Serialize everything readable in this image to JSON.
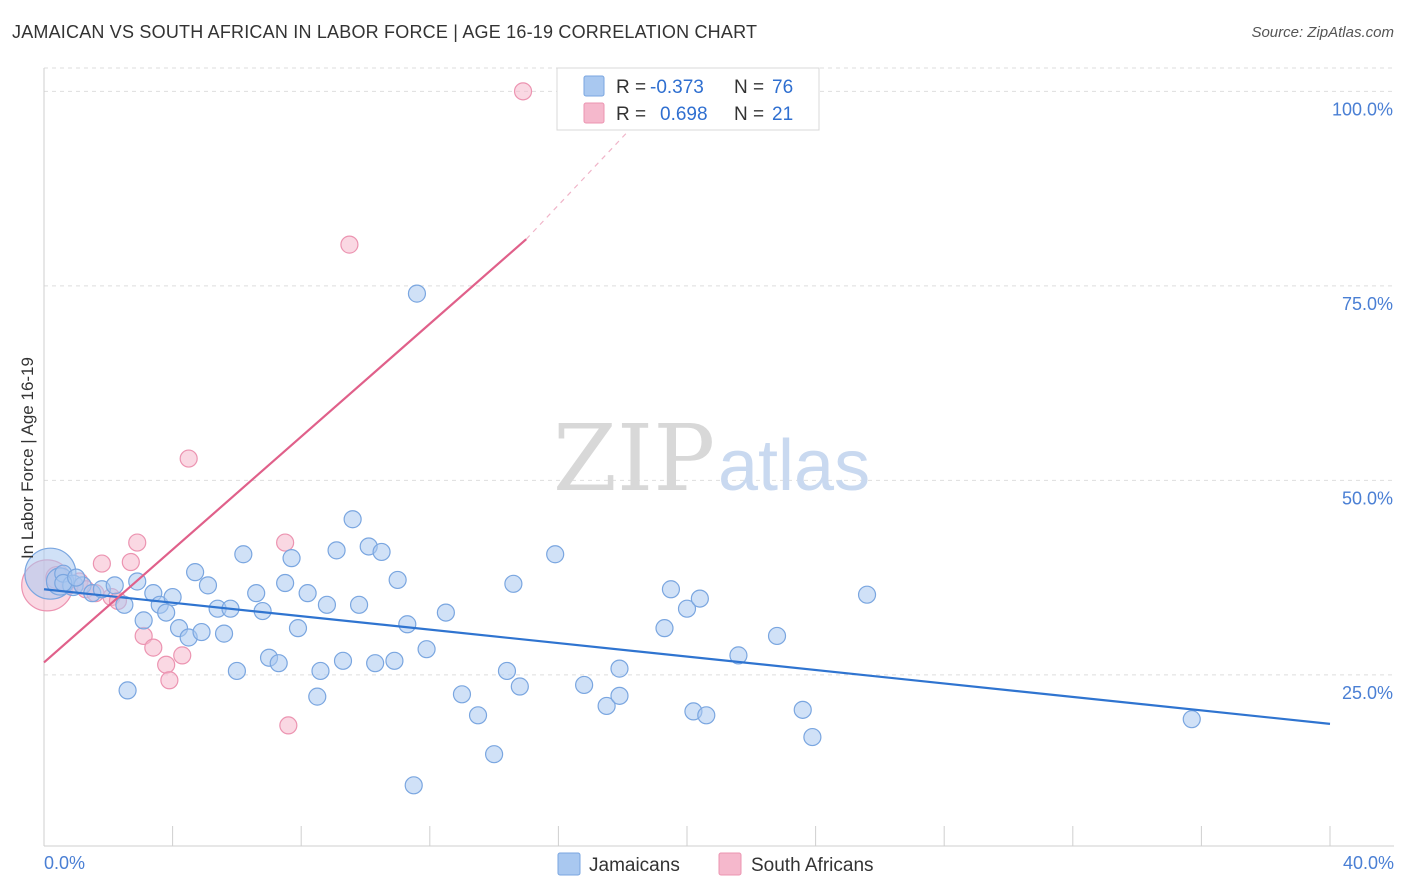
{
  "title": "JAMAICAN VS SOUTH AFRICAN IN LABOR FORCE | AGE 16-19 CORRELATION CHART",
  "source": "Source: ZipAtlas.com",
  "watermark": {
    "zip": "ZIP",
    "atlas": "atlas"
  },
  "colors": {
    "jamaicans_fill": "#a9c8f0",
    "jamaicans_stroke": "#7aa6e0",
    "jamaicans_line": "#2f74d0",
    "southafricans_fill": "#f5b8cc",
    "southafricans_stroke": "#ec94b1",
    "southafricans_line": "#e0608a"
  },
  "legend": {
    "r_label": "R =",
    "n_label": "N =",
    "jamaicans_r": "-0.373",
    "jamaicans_n": "76",
    "southafricans_r": "0.698",
    "southafricans_n": "21"
  },
  "chart_data": {
    "type": "scatter",
    "title": "JAMAICAN VS SOUTH AFRICAN IN LABOR FORCE | AGE 16-19 CORRELATION CHART",
    "xlabel": "",
    "ylabel": "In Labor Force | Age 16-19",
    "xlim": [
      0,
      40
    ],
    "ylim": [
      3,
      103
    ],
    "x_tick_labels": [
      "0.0%",
      "40.0%"
    ],
    "y_ticks": [
      25,
      50,
      75,
      100
    ],
    "y_tick_labels": [
      "25.0%",
      "50.0%",
      "75.0%",
      "100.0%"
    ],
    "grid": true,
    "legend_position": "top-center",
    "series": [
      {
        "name": "Jamaicans",
        "r": -0.373,
        "n": 76,
        "trend": {
          "x": [
            0,
            40
          ],
          "y": [
            36.0,
            18.7
          ]
        },
        "points": [
          [
            0.2,
            38.0,
            3
          ],
          [
            0.5,
            37.0,
            1.6
          ],
          [
            0.6,
            38.0,
            1
          ],
          [
            0.9,
            36.5,
            1.2
          ],
          [
            1.2,
            36.5,
            1
          ],
          [
            1.5,
            35.5,
            1
          ],
          [
            1.8,
            36.0,
            1
          ],
          [
            2.2,
            36.5,
            1
          ],
          [
            2.5,
            34.0,
            1
          ],
          [
            2.6,
            23.0,
            1
          ],
          [
            2.9,
            37.0,
            1
          ],
          [
            3.1,
            32.0,
            1
          ],
          [
            3.4,
            35.5,
            1
          ],
          [
            3.6,
            34.0,
            1
          ],
          [
            3.8,
            33.0,
            1
          ],
          [
            4.0,
            35.0,
            1
          ],
          [
            4.2,
            31.0,
            1
          ],
          [
            4.5,
            29.8,
            1
          ],
          [
            4.7,
            38.2,
            1
          ],
          [
            4.9,
            30.5,
            1
          ],
          [
            5.1,
            36.5,
            1
          ],
          [
            5.4,
            33.5,
            1
          ],
          [
            5.6,
            30.3,
            1
          ],
          [
            5.8,
            33.5,
            1
          ],
          [
            6.0,
            25.5,
            1
          ],
          [
            6.2,
            40.5,
            1
          ],
          [
            6.6,
            35.5,
            1
          ],
          [
            6.8,
            33.2,
            1
          ],
          [
            7.0,
            27.2,
            1
          ],
          [
            7.3,
            26.5,
            1
          ],
          [
            7.5,
            36.8,
            1
          ],
          [
            7.7,
            40.0,
            1
          ],
          [
            7.9,
            31.0,
            1
          ],
          [
            8.2,
            35.5,
            1
          ],
          [
            8.5,
            22.2,
            1
          ],
          [
            8.6,
            25.5,
            1
          ],
          [
            8.8,
            34.0,
            1
          ],
          [
            9.1,
            41.0,
            1
          ],
          [
            9.3,
            26.8,
            1
          ],
          [
            9.6,
            45.0,
            1
          ],
          [
            9.8,
            34.0,
            1
          ],
          [
            10.1,
            41.5,
            1
          ],
          [
            10.3,
            26.5,
            1
          ],
          [
            10.5,
            40.8,
            1
          ],
          [
            10.9,
            26.8,
            1
          ],
          [
            11.0,
            37.2,
            1
          ],
          [
            11.3,
            31.5,
            1
          ],
          [
            11.9,
            28.3,
            1
          ],
          [
            11.6,
            74.0,
            1
          ],
          [
            11.5,
            10.8,
            1
          ],
          [
            12.5,
            33.0,
            1
          ],
          [
            13.0,
            22.5,
            1
          ],
          [
            13.5,
            19.8,
            1
          ],
          [
            14.0,
            14.8,
            1
          ],
          [
            14.4,
            25.5,
            1
          ],
          [
            14.6,
            36.7,
            1
          ],
          [
            14.8,
            23.5,
            1
          ],
          [
            15.9,
            40.5,
            1
          ],
          [
            16.8,
            23.7,
            1
          ],
          [
            17.5,
            21.0,
            1
          ],
          [
            17.9,
            25.8,
            1
          ],
          [
            17.9,
            22.3,
            1
          ],
          [
            19.3,
            31.0,
            1
          ],
          [
            19.5,
            36.0,
            1
          ],
          [
            20.0,
            33.5,
            1
          ],
          [
            20.2,
            20.3,
            1
          ],
          [
            20.4,
            34.8,
            1
          ],
          [
            20.6,
            19.8,
            1
          ],
          [
            21.6,
            27.5,
            1
          ],
          [
            22.8,
            30.0,
            1
          ],
          [
            23.6,
            20.5,
            1
          ],
          [
            23.9,
            17.0,
            1
          ],
          [
            25.6,
            35.3,
            1
          ],
          [
            35.7,
            19.3,
            1
          ],
          [
            0.6,
            36.8,
            1
          ],
          [
            1.0,
            37.5,
            1
          ]
        ]
      },
      {
        "name": "South Africans",
        "r": 0.698,
        "n": 21,
        "trend": {
          "x": [
            0,
            15.0
          ],
          "y": [
            26.6,
            81.0
          ],
          "dash_to": [
            19.0,
            98.5
          ]
        },
        "points": [
          [
            0.1,
            36.5,
            3
          ],
          [
            0.4,
            37.5,
            1.3
          ],
          [
            0.8,
            36.5,
            1
          ],
          [
            1.1,
            37.0,
            1
          ],
          [
            1.3,
            36.0,
            1
          ],
          [
            1.6,
            35.5,
            1
          ],
          [
            1.8,
            39.3,
            1
          ],
          [
            2.1,
            35.0,
            1
          ],
          [
            2.3,
            34.5,
            1
          ],
          [
            2.7,
            39.5,
            1
          ],
          [
            2.9,
            42.0,
            1
          ],
          [
            3.1,
            30.0,
            1
          ],
          [
            3.4,
            28.5,
            1
          ],
          [
            3.8,
            26.3,
            1
          ],
          [
            3.9,
            24.3,
            1
          ],
          [
            4.3,
            27.5,
            1
          ],
          [
            4.5,
            52.8,
            1
          ],
          [
            7.5,
            42.0,
            1
          ],
          [
            7.6,
            18.5,
            1
          ],
          [
            9.5,
            80.3,
            1
          ],
          [
            14.9,
            100.0,
            1
          ]
        ]
      }
    ]
  },
  "bottom_legend": {
    "jamaicans": "Jamaicans",
    "southafricans": "South Africans"
  }
}
